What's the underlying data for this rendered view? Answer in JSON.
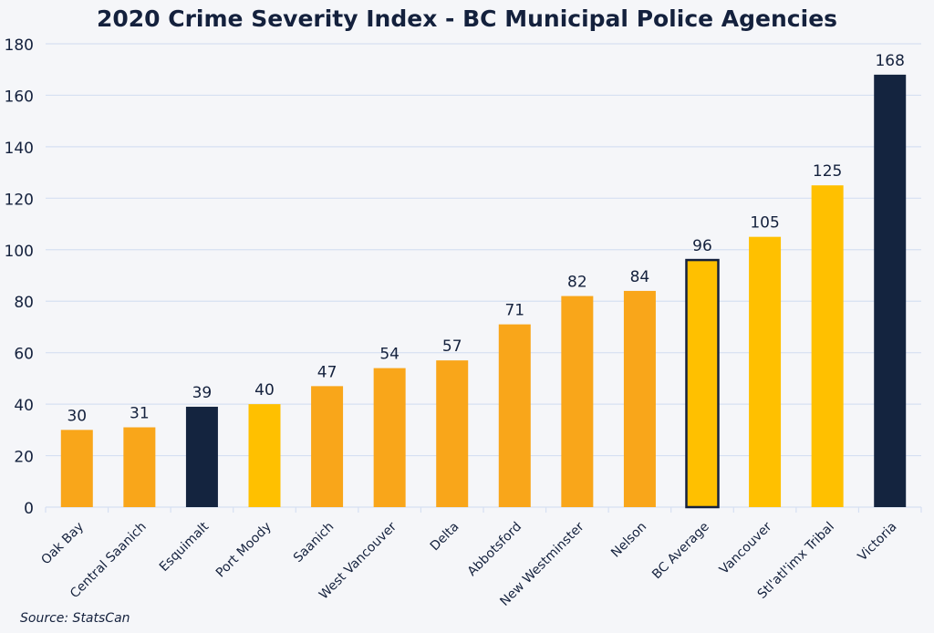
{
  "chart_data": {
    "type": "bar",
    "title": "2020 Crime Severity Index - BC Municipal Police Agencies",
    "source": "Source: StatsCan",
    "categories": [
      "Oak Bay",
      "Central Saanich",
      "Esquimalt",
      "Port Moody",
      "Saanich",
      "West Vancouver",
      "Delta",
      "Abbotsford",
      "New Westminster",
      "Nelson",
      "BC Average",
      "Vancouver",
      "Stl'atl'imx Tribal",
      "Victoria"
    ],
    "values": [
      30,
      31,
      39,
      40,
      47,
      54,
      57,
      71,
      82,
      84,
      96,
      105,
      125,
      168
    ],
    "bar_colors": [
      "#f9a61a",
      "#f9a61a",
      "#14243f",
      "#ffc000",
      "#f9a61a",
      "#f9a61a",
      "#f9a61a",
      "#f9a61a",
      "#f9a61a",
      "#f9a61a",
      "#ffc000",
      "#ffc000",
      "#ffc000",
      "#14243f"
    ],
    "highlighted_outline": "BC Average",
    "ylim": [
      0,
      180
    ],
    "yticks": [
      0,
      20,
      40,
      60,
      80,
      100,
      120,
      140,
      160,
      180
    ],
    "grid": true,
    "xlabel": "",
    "ylabel": ""
  }
}
